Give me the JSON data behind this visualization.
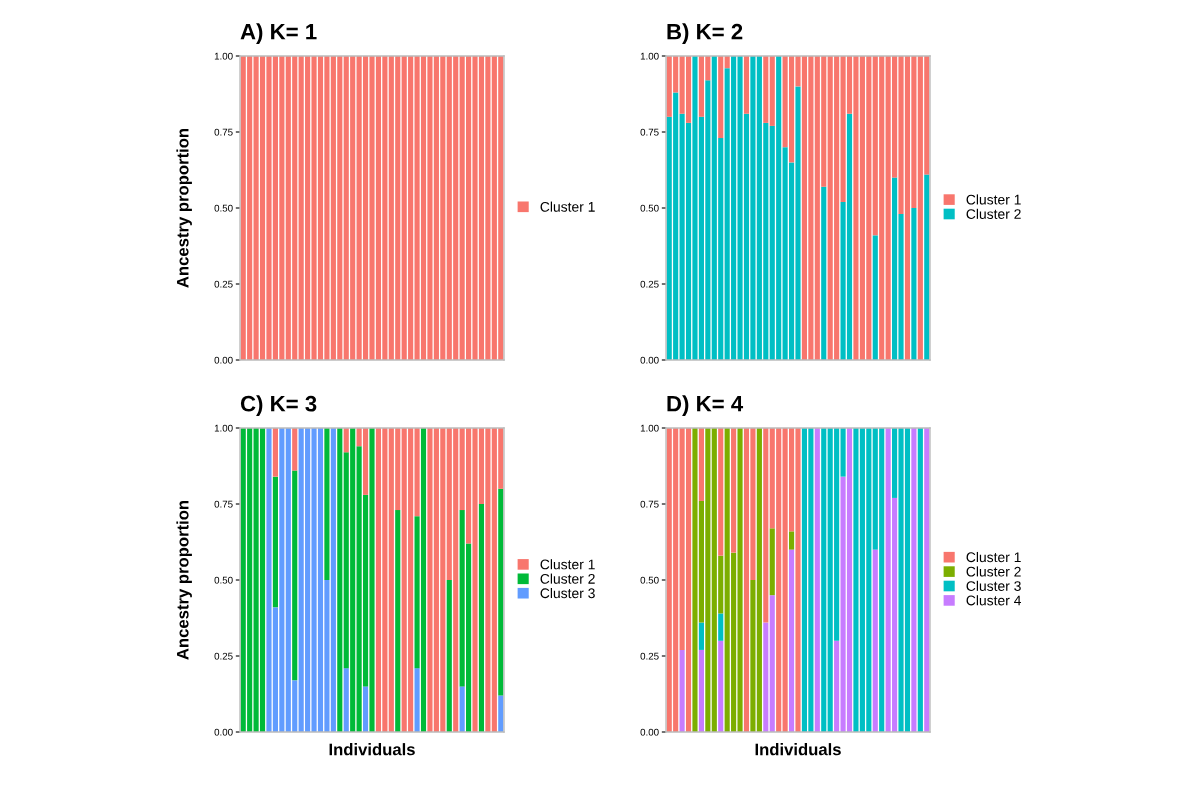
{
  "chart_data": [
    {
      "type": "bar",
      "title": "A) K= 1",
      "ylabel": "Ancestry proportion",
      "stacked": true,
      "legend": "right",
      "tick_labels": "y",
      "ylim": [
        0,
        1
      ],
      "yticks": [
        {
          "value": 0,
          "label": "0.00"
        },
        {
          "value": 0.25,
          "label": "0.25"
        },
        {
          "value": 0.5,
          "label": "0.50"
        },
        {
          "value": 0.75,
          "label": "0.75"
        },
        {
          "value": 1,
          "label": "1.00"
        }
      ],
      "categories": [
        null,
        null,
        null,
        null,
        null,
        null,
        null,
        null,
        null,
        null,
        null,
        null,
        null,
        null,
        null,
        null,
        null,
        null,
        null,
        null,
        null,
        null,
        null,
        null,
        null,
        null,
        null,
        null,
        null,
        null,
        null,
        null,
        null,
        null,
        null,
        null,
        null,
        null,
        null,
        null,
        null
      ],
      "series": [
        {
          "name": "Cluster 1",
          "color": "#f8766d",
          "values": [
            1,
            1,
            1,
            1,
            1,
            1,
            1,
            1,
            1,
            1,
            1,
            1,
            1,
            1,
            1,
            1,
            1,
            1,
            1,
            1,
            1,
            1,
            1,
            1,
            1,
            1,
            1,
            1,
            1,
            1,
            1,
            1,
            1,
            1,
            1,
            1,
            1,
            1,
            1,
            1,
            1
          ]
        }
      ]
    },
    {
      "type": "bar",
      "title": "B) K= 2",
      "stacked": true,
      "legend": "right",
      "tick_labels": "y",
      "ylim": [
        0,
        1
      ],
      "yticks": [
        {
          "value": 0,
          "label": "0.00"
        },
        {
          "value": 0.25,
          "label": "0.25"
        },
        {
          "value": 0.5,
          "label": "0.50"
        },
        {
          "value": 0.75,
          "label": "0.75"
        },
        {
          "value": 1,
          "label": "1.00"
        }
      ],
      "categories": [
        null,
        null,
        null,
        null,
        null,
        null,
        null,
        null,
        null,
        null,
        null,
        null,
        null,
        null,
        null,
        null,
        null,
        null,
        null,
        null,
        null,
        null,
        null,
        null,
        null,
        null,
        null,
        null,
        null,
        null,
        null,
        null,
        null,
        null,
        null,
        null,
        null,
        null,
        null,
        null,
        null
      ],
      "series": [
        {
          "name": "Cluster 2",
          "color": "#00bfc4",
          "values": [
            0.8,
            0.88,
            0.81,
            0.78,
            1,
            0.8,
            0.92,
            1,
            0.73,
            0.96,
            1,
            1,
            0.81,
            1,
            1,
            0.78,
            0.77,
            1,
            0.7,
            0.65,
            0.9,
            0,
            0,
            0,
            0.57,
            0,
            0,
            0.52,
            0.81,
            0,
            0,
            0,
            0.41,
            0,
            0,
            0.6,
            0.48,
            0,
            0.5,
            0,
            0.61
          ]
        },
        {
          "name": "Cluster 1",
          "color": "#f8766d",
          "values": [
            0.2,
            0.12,
            0.19,
            0.22,
            0,
            0.2,
            0.08,
            0,
            0.27,
            0.04,
            0,
            0,
            0.19,
            0,
            0,
            0.22,
            0.23,
            0,
            0.3,
            0.35,
            0.1,
            1,
            1,
            1,
            0.43,
            1,
            1,
            0.48,
            0.19,
            1,
            1,
            1,
            0.59,
            1,
            1,
            0.4,
            0.52,
            1,
            0.5,
            1,
            0.39
          ]
        }
      ]
    },
    {
      "type": "bar",
      "title": "C) K= 3",
      "ylabel": "Ancestry proportion",
      "xlabel": "Individuals",
      "stacked": true,
      "legend": "right",
      "tick_labels": "y",
      "ylim": [
        0,
        1
      ],
      "yticks": [
        {
          "value": 0,
          "label": "0.00"
        },
        {
          "value": 0.25,
          "label": "0.25"
        },
        {
          "value": 0.5,
          "label": "0.50"
        },
        {
          "value": 0.75,
          "label": "0.75"
        },
        {
          "value": 1,
          "label": "1.00"
        }
      ],
      "categories": [
        null,
        null,
        null,
        null,
        null,
        null,
        null,
        null,
        null,
        null,
        null,
        null,
        null,
        null,
        null,
        null,
        null,
        null,
        null,
        null,
        null,
        null,
        null,
        null,
        null,
        null,
        null,
        null,
        null,
        null,
        null,
        null,
        null,
        null,
        null,
        null,
        null,
        null,
        null,
        null,
        null
      ],
      "series": [
        {
          "name": "Cluster 3",
          "color": "#619cff",
          "values": [
            0,
            0,
            0,
            0,
            1,
            0.41,
            1,
            1,
            0.17,
            1,
            1,
            1,
            1,
            0.5,
            1,
            0,
            0.21,
            0,
            0,
            0.15,
            0,
            0,
            0,
            0,
            0,
            0,
            0,
            0.21,
            0,
            0,
            0,
            0,
            0,
            0,
            0.15,
            0,
            0,
            0,
            0,
            0,
            0.12
          ]
        },
        {
          "name": "Cluster 2",
          "color": "#00ba38",
          "values": [
            1,
            1,
            1,
            1,
            0,
            0.43,
            0,
            0,
            0.69,
            0,
            0,
            0,
            0,
            0.5,
            0,
            1,
            0.71,
            1,
            0.94,
            0.63,
            1,
            0,
            0,
            0,
            0.73,
            0,
            0,
            0.5,
            1,
            0,
            0,
            0,
            0.5,
            0,
            0.58,
            0.62,
            0,
            0.75,
            0,
            0,
            0.68
          ]
        },
        {
          "name": "Cluster 1",
          "color": "#f8766d",
          "values": [
            0,
            0,
            0,
            0,
            0,
            0.16,
            0,
            0,
            0.14,
            0,
            0,
            0,
            0,
            0,
            0,
            0,
            0.08,
            0,
            0.06,
            0.22,
            0,
            1,
            1,
            1,
            0.27,
            1,
            1,
            0.29,
            0,
            1,
            1,
            1,
            0.5,
            1,
            0.27,
            0.38,
            1,
            0.25,
            1,
            1,
            0.2
          ]
        }
      ]
    },
    {
      "type": "bar",
      "title": "D) K= 4",
      "xlabel": "Individuals",
      "stacked": true,
      "legend": "right",
      "tick_labels": "y",
      "ylim": [
        0,
        1
      ],
      "yticks": [
        {
          "value": 0,
          "label": "0.00"
        },
        {
          "value": 0.25,
          "label": "0.25"
        },
        {
          "value": 0.5,
          "label": "0.50"
        },
        {
          "value": 0.75,
          "label": "0.75"
        },
        {
          "value": 1,
          "label": "1.00"
        }
      ],
      "categories": [
        null,
        null,
        null,
        null,
        null,
        null,
        null,
        null,
        null,
        null,
        null,
        null,
        null,
        null,
        null,
        null,
        null,
        null,
        null,
        null,
        null,
        null,
        null,
        null,
        null,
        null,
        null,
        null,
        null,
        null,
        null,
        null,
        null,
        null,
        null,
        null,
        null,
        null,
        null,
        null,
        null
      ],
      "series": [
        {
          "name": "Cluster 4",
          "color": "#c77cff",
          "values": [
            0,
            0,
            0.27,
            0,
            0,
            0.27,
            0,
            0,
            0.3,
            0,
            0,
            0,
            0,
            0,
            0,
            0.36,
            0.45,
            0,
            0,
            0.6,
            0,
            0,
            0,
            1,
            0,
            0,
            0.3,
            0.84,
            1,
            0,
            0,
            0,
            0.6,
            0,
            1,
            0.77,
            0,
            0,
            1,
            0,
            1
          ]
        },
        {
          "name": "Cluster 3",
          "color": "#00bfc4",
          "values": [
            0,
            0,
            0,
            0,
            0,
            0.09,
            0,
            0,
            0.09,
            0,
            0,
            0,
            0,
            0,
            0,
            0,
            0,
            0,
            0,
            0,
            0,
            1,
            1,
            0,
            1,
            1,
            0.7,
            0.16,
            0,
            1,
            1,
            1,
            0.4,
            1,
            0,
            0.23,
            1,
            1,
            0,
            1,
            0
          ]
        },
        {
          "name": "Cluster 2",
          "color": "#7cae00",
          "values": [
            0,
            0,
            0,
            0,
            1,
            0.4,
            1,
            1,
            0.19,
            1,
            0.59,
            1,
            0,
            0.5,
            1,
            0,
            0.22,
            0,
            0,
            0.06,
            0,
            0,
            0,
            0,
            0,
            0,
            0,
            0,
            0,
            0,
            0,
            0,
            0,
            0,
            0,
            0,
            0,
            0,
            0,
            0,
            0
          ]
        },
        {
          "name": "Cluster 1",
          "color": "#f8766d",
          "values": [
            1,
            1,
            0.73,
            1,
            0,
            0.24,
            0,
            0,
            0.42,
            0,
            0.41,
            0,
            1,
            0.5,
            0,
            0.64,
            0.33,
            1,
            1,
            0.34,
            1,
            0,
            0,
            0,
            0,
            0,
            0,
            0,
            0,
            0,
            0,
            0,
            0,
            0,
            0,
            0,
            0,
            0,
            0,
            0,
            0
          ]
        }
      ]
    }
  ]
}
